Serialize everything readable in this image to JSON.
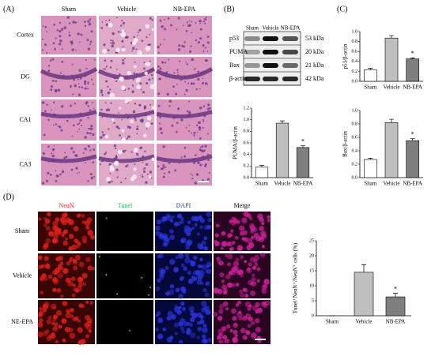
{
  "panel_labels": [
    "(A)",
    "(B)",
    "(C)",
    "(D)"
  ],
  "he": {
    "columns": [
      "Sham",
      "Vehicle",
      "NB-EPA"
    ],
    "rows": [
      "Cortex",
      "DG",
      "CA1",
      "CA3"
    ]
  },
  "blot": {
    "lanes": [
      "Sham",
      "Vehicle",
      "NB-EPA"
    ],
    "proteins": [
      "p53",
      "PUMA",
      "Bax",
      "β-actin"
    ],
    "sizes": [
      "53 kDa",
      "20 kDa",
      "21 kDa",
      "42 kDa"
    ]
  },
  "fluor": {
    "columns": [
      "NeuN",
      "Tunel",
      "DAPI",
      "Merge"
    ],
    "rows": [
      "Sham",
      "Vehicle",
      "NE-EPA"
    ]
  },
  "chart_data": [
    {
      "type": "bar",
      "y_label": "p53/β-actin",
      "categories": [
        "Sham",
        "Vehicle",
        "NB-EPA"
      ],
      "values": [
        0.23,
        0.87,
        0.45
      ],
      "errors": [
        0.03,
        0.05,
        0.02
      ],
      "colors": [
        "#ffffff",
        "#bfbfbf",
        "#7f7f7f"
      ],
      "edgecolor": "#000000",
      "annotation": "*",
      "ylim": [
        0,
        1.0
      ],
      "yticks": [
        {
          "value": 0,
          "label": "0.0"
        },
        0.2,
        0.4,
        0.6,
        0.8,
        {
          "value": 1,
          "label": "1.0"
        }
      ]
    },
    {
      "type": "bar",
      "y_label": "PUMA/β-actin",
      "categories": [
        "Sham",
        "Vehicle",
        "NB-EPA"
      ],
      "values": [
        0.18,
        0.94,
        0.52
      ],
      "errors": [
        0.03,
        0.04,
        0.03
      ],
      "colors": [
        "#ffffff",
        "#bfbfbf",
        "#7f7f7f"
      ],
      "edgecolor": "#000000",
      "annotation": "*",
      "ylim": [
        0,
        1.2
      ],
      "yticks": [
        {
          "value": 0,
          "label": "0.0"
        },
        0.2,
        0.4,
        0.6,
        0.8,
        {
          "value": 1,
          "label": "1.0"
        },
        1.2
      ]
    },
    {
      "type": "bar",
      "y_label": "Bax/β-actin",
      "categories": [
        "Sham",
        "Vehicle",
        "NB-EPA"
      ],
      "values": [
        0.27,
        0.82,
        0.55
      ],
      "errors": [
        0.02,
        0.05,
        0.03
      ],
      "colors": [
        "#ffffff",
        "#bfbfbf",
        "#7f7f7f"
      ],
      "edgecolor": "#000000",
      "annotation": "*",
      "ylim": [
        0,
        1.0
      ],
      "yticks": [
        {
          "value": 0,
          "label": "0.0"
        },
        0.2,
        0.4,
        0.6,
        0.8,
        {
          "value": 1,
          "label": "1.0"
        }
      ]
    },
    {
      "type": "bar",
      "y_label": "Tunel⁺NeuN⁺/NeuN⁺ cells (%)",
      "categories": [
        "Sham",
        "Vehicle",
        "NB-EPA"
      ],
      "values": [
        0,
        14.5,
        6.3
      ],
      "errors": [
        0,
        2.5,
        1.2
      ],
      "colors": [
        "#ffffff",
        "#bfbfbf",
        "#7f7f7f"
      ],
      "edgecolor": "#000000",
      "annotation": "*",
      "ylim": [
        0,
        25
      ],
      "yticks": [
        0,
        5,
        10,
        15,
        20,
        25
      ]
    }
  ]
}
